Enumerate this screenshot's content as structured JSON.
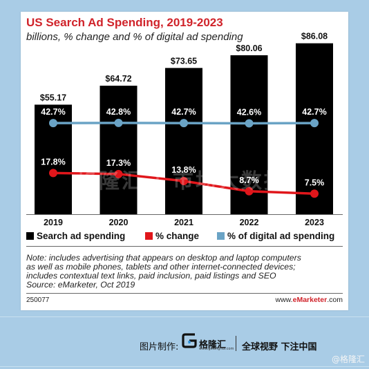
{
  "colors": {
    "bar": "#000000",
    "change": "#e0161b",
    "digital_share": "#6aa3c5",
    "title": "#d0232a",
    "background": "#a9cce6"
  },
  "chart_data": {
    "type": "bar",
    "title": "US Search Ad Spending, 2019-2023",
    "subtitle": "billions, % change and % of digital ad spending",
    "categories": [
      "2019",
      "2020",
      "2021",
      "2022",
      "2023"
    ],
    "series": [
      {
        "name": "Search ad spending",
        "type": "bar",
        "values": [
          55.17,
          64.72,
          73.65,
          80.06,
          86.08
        ],
        "labels": [
          "$55.17",
          "$64.72",
          "$73.65",
          "$80.06",
          "$86.08"
        ]
      },
      {
        "name": "% change",
        "type": "line",
        "values": [
          17.8,
          17.3,
          13.8,
          8.7,
          7.5
        ],
        "labels": [
          "17.8%",
          "17.3%",
          "13.8%",
          "8.7%",
          "7.5%"
        ]
      },
      {
        "name": "% of digital ad spending",
        "type": "line",
        "values": [
          42.7,
          42.8,
          42.7,
          42.6,
          42.7
        ],
        "labels": [
          "42.7%",
          "42.8%",
          "42.7%",
          "42.6%",
          "42.7%"
        ]
      }
    ],
    "ylim": [
      0,
      95
    ],
    "grid": false,
    "legend_position": "bottom"
  },
  "note": {
    "lines": [
      "Note: includes advertising that appears on desktop and laptop computers",
      "as well as mobile phones, tablets and other internet-connected devices;",
      "includes contextual text links, paid inclusion, paid listings and SEO",
      "Source: eMarketer, Oct 2019"
    ]
  },
  "footer": {
    "chart_id": "250077",
    "site_prefix": "www.",
    "site_brand": "eMarketer",
    "site_suffix": ".com"
  },
  "watermark": {
    "text": "格隆汇 | 市场大数据"
  },
  "credit": {
    "label": "图片制作:",
    "brand": "格隆汇",
    "brand_sub": "www.gelonghui.com",
    "slogan": "全球视野 下注中国",
    "corner": "@格隆汇"
  }
}
